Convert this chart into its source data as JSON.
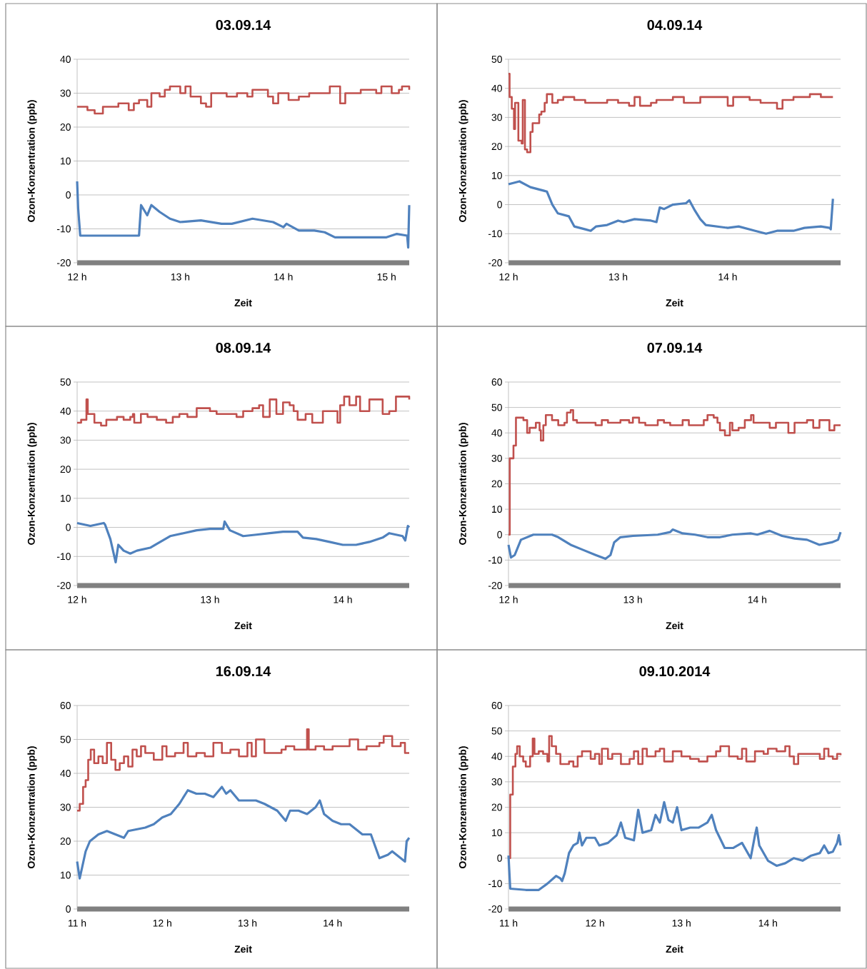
{
  "chart_data": [
    {
      "type": "line",
      "title": "03.09.14",
      "xlabel": "Zeit",
      "ylabel": "Ozon-Konzentration (ppb)",
      "xlim": [
        12,
        15.22
      ],
      "ylim": [
        -20,
        40
      ],
      "grid": "y",
      "xticks": [
        {
          "value": 12,
          "label": "12 h"
        },
        {
          "value": 13,
          "label": "13 h"
        },
        {
          "value": 14,
          "label": "14 h"
        },
        {
          "value": 15,
          "label": "15 h"
        }
      ],
      "yticks": [
        -20,
        -10,
        0,
        10,
        20,
        30,
        40
      ],
      "series": [
        {
          "type": "step",
          "color": "#c0504d",
          "x": [
            12.0,
            12.1,
            12.17,
            12.25,
            12.4,
            12.5,
            12.55,
            12.6,
            12.68,
            12.72,
            12.8,
            12.85,
            12.9,
            13.0,
            13.05,
            13.1,
            13.2,
            13.25,
            13.3,
            13.45,
            13.55,
            13.65,
            13.7,
            13.85,
            13.9,
            13.95,
            14.05,
            14.15,
            14.25,
            14.4,
            14.45,
            14.55,
            14.6,
            14.75,
            14.9,
            14.95,
            15.05,
            15.12,
            15.15,
            15.22
          ],
          "values": [
            26,
            25,
            24,
            26,
            27,
            25,
            27,
            28,
            26,
            30,
            29,
            31,
            32,
            30,
            32,
            29,
            27,
            26,
            30,
            29,
            30,
            29,
            31,
            29,
            27,
            30,
            28,
            29,
            30,
            30,
            32,
            27,
            30,
            31,
            30,
            32,
            30,
            31,
            32,
            31
          ]
        },
        {
          "type": "line",
          "color": "#4f81bd",
          "x": [
            12.0,
            12.01,
            12.03,
            12.6,
            12.62,
            12.68,
            12.72,
            12.8,
            12.9,
            13.0,
            13.2,
            13.4,
            13.5,
            13.7,
            13.9,
            14.0,
            14.03,
            14.15,
            14.3,
            14.4,
            14.5,
            15.0,
            15.1,
            15.2,
            15.21,
            15.22
          ],
          "values": [
            4,
            -4,
            -12,
            -12,
            -3,
            -6,
            -3,
            -5,
            -7,
            -8,
            -7.5,
            -8.5,
            -8.5,
            -7,
            -8,
            -9.5,
            -8.5,
            -10.5,
            -10.5,
            -11,
            -12.5,
            -12.5,
            -11.5,
            -12,
            -15.5,
            -3
          ]
        }
      ]
    },
    {
      "type": "line",
      "title": "04.09.14",
      "xlabel": "Zeit",
      "ylabel": "Ozon-Konzentration (ppb)",
      "xlim": [
        12,
        15.03
      ],
      "ylim": [
        -20,
        50
      ],
      "grid": "y",
      "xticks": [
        {
          "value": 12,
          "label": "12 h"
        },
        {
          "value": 13,
          "label": "13 h"
        },
        {
          "value": 14,
          "label": "14 h"
        }
      ],
      "yticks": [
        -20,
        -10,
        0,
        10,
        20,
        30,
        40,
        50
      ],
      "series": [
        {
          "type": "step",
          "color": "#c0504d",
          "x": [
            12.0,
            12.01,
            12.03,
            12.05,
            12.06,
            12.09,
            12.12,
            12.13,
            12.15,
            12.17,
            12.2,
            12.22,
            12.28,
            12.3,
            12.33,
            12.35,
            12.4,
            12.45,
            12.5,
            12.6,
            12.7,
            12.9,
            13.0,
            13.1,
            13.15,
            13.2,
            13.3,
            13.35,
            13.5,
            13.6,
            13.75,
            13.9,
            14.0,
            14.05,
            14.2,
            14.3,
            14.45,
            14.5,
            14.6,
            14.75,
            14.85,
            14.96
          ],
          "values": [
            45,
            37,
            33,
            26,
            35,
            22,
            21,
            36,
            19,
            18,
            25,
            28,
            31,
            32,
            35,
            38,
            35,
            36,
            37,
            36,
            35,
            36,
            35,
            34,
            37,
            34,
            35,
            36,
            37,
            35,
            37,
            37,
            34,
            37,
            36,
            35,
            33,
            36,
            37,
            38,
            37,
            37
          ]
        },
        {
          "type": "line",
          "color": "#4f81bd",
          "x": [
            12.0,
            12.1,
            12.2,
            12.35,
            12.4,
            12.45,
            12.55,
            12.6,
            12.7,
            12.75,
            12.8,
            12.9,
            13.0,
            13.05,
            13.15,
            13.3,
            13.35,
            13.38,
            13.42,
            13.5,
            13.62,
            13.65,
            13.7,
            13.75,
            13.8,
            14.0,
            14.1,
            14.25,
            14.35,
            14.45,
            14.6,
            14.7,
            14.85,
            14.93,
            14.94,
            14.96
          ],
          "values": [
            7,
            8,
            6,
            4.5,
            0,
            -3,
            -4,
            -7.5,
            -8.5,
            -9,
            -7.5,
            -7,
            -5.5,
            -6,
            -5,
            -5.5,
            -6,
            -1,
            -1.5,
            0,
            0.5,
            1.5,
            -2,
            -5,
            -7,
            -8,
            -7.5,
            -9,
            -10,
            -9,
            -9,
            -8,
            -7.5,
            -8,
            -8.5,
            2
          ]
        }
      ]
    },
    {
      "type": "line",
      "title": "08.09.14",
      "xlabel": "Zeit",
      "ylabel": "Ozon-Konzentration (ppb)",
      "xlim": [
        12,
        14.5
      ],
      "ylim": [
        -20,
        50
      ],
      "grid": "y",
      "xticks": [
        {
          "value": 12,
          "label": "12 h"
        },
        {
          "value": 13,
          "label": "13 h"
        },
        {
          "value": 14,
          "label": "14 h"
        }
      ],
      "yticks": [
        -20,
        -10,
        0,
        10,
        20,
        30,
        40,
        50
      ],
      "series": [
        {
          "type": "step",
          "color": "#c0504d",
          "x": [
            12.0,
            12.03,
            12.07,
            12.08,
            12.13,
            12.18,
            12.22,
            12.3,
            12.35,
            12.4,
            12.42,
            12.43,
            12.48,
            12.53,
            12.6,
            12.67,
            12.72,
            12.77,
            12.83,
            12.9,
            13.0,
            13.05,
            13.15,
            13.2,
            13.25,
            13.32,
            13.37,
            13.4,
            13.45,
            13.5,
            13.55,
            13.6,
            13.63,
            13.66,
            13.72,
            13.77,
            13.85,
            13.96,
            13.98,
            14.01,
            14.05,
            14.1,
            14.13,
            14.2,
            14.3,
            14.35,
            14.4,
            14.5
          ],
          "values": [
            36,
            37,
            44,
            39,
            36,
            35,
            37,
            38,
            37,
            38,
            39,
            36,
            39,
            38,
            37,
            36,
            38,
            39,
            38,
            41,
            40,
            39,
            39,
            38,
            40,
            41,
            42,
            38,
            44,
            39,
            43,
            42,
            40,
            37,
            39,
            36,
            40,
            36,
            42,
            45,
            42,
            45,
            40,
            44,
            39,
            40,
            45,
            44
          ]
        },
        {
          "type": "line",
          "color": "#4f81bd",
          "x": [
            12.0,
            12.1,
            12.2,
            12.21,
            12.25,
            12.29,
            12.31,
            12.35,
            12.4,
            12.45,
            12.55,
            12.7,
            12.8,
            12.9,
            13.0,
            13.1,
            13.11,
            13.15,
            13.25,
            13.35,
            13.45,
            13.55,
            13.66,
            13.7,
            13.8,
            13.9,
            14.0,
            14.1,
            14.2,
            14.3,
            14.35,
            14.45,
            14.47,
            14.49,
            14.5
          ],
          "values": [
            1.5,
            0.5,
            1.5,
            1,
            -4,
            -12,
            -6,
            -8,
            -9,
            -8,
            -7,
            -3,
            -2,
            -1,
            -0.5,
            -0.5,
            2,
            -1,
            -3,
            -2.5,
            -2,
            -1.5,
            -1.5,
            -3.5,
            -4,
            -5,
            -6,
            -6,
            -5,
            -3.5,
            -2,
            -3,
            -4.5,
            0.5,
            0
          ]
        }
      ]
    },
    {
      "type": "line",
      "title": "07.09.14",
      "xlabel": "Zeit",
      "ylabel": "Ozon-Konzentration (ppb)",
      "xlim": [
        12,
        14.67
      ],
      "ylim": [
        -20,
        60
      ],
      "grid": "y",
      "xticks": [
        {
          "value": 12,
          "label": "12 h"
        },
        {
          "value": 13,
          "label": "13 h"
        },
        {
          "value": 14,
          "label": "14 h"
        }
      ],
      "yticks": [
        -20,
        -10,
        0,
        10,
        20,
        30,
        40,
        50,
        60
      ],
      "series": [
        {
          "type": "step",
          "color": "#c0504d",
          "x": [
            12.0,
            12.01,
            12.04,
            12.06,
            12.12,
            12.15,
            12.17,
            12.22,
            12.25,
            12.26,
            12.28,
            12.3,
            12.35,
            12.4,
            12.45,
            12.47,
            12.5,
            12.52,
            12.55,
            12.65,
            12.7,
            12.75,
            12.8,
            12.9,
            12.97,
            13.0,
            13.05,
            13.1,
            13.2,
            13.25,
            13.3,
            13.4,
            13.45,
            13.5,
            13.57,
            13.6,
            13.65,
            13.68,
            13.7,
            13.74,
            13.78,
            13.8,
            13.85,
            13.9,
            13.95,
            13.97,
            14.05,
            14.1,
            14.15,
            14.25,
            14.3,
            14.4,
            14.45,
            14.5,
            14.58,
            14.62,
            14.67
          ],
          "values": [
            0,
            30,
            35,
            46,
            45,
            40,
            42,
            44,
            41,
            37,
            43,
            47,
            45,
            43,
            44,
            48,
            49,
            45,
            44,
            44,
            43,
            45,
            44,
            45,
            44,
            46,
            44,
            43,
            45,
            44,
            43,
            45,
            43,
            43,
            45,
            47,
            46,
            44,
            41,
            39,
            44,
            41,
            42,
            45,
            47,
            44,
            44,
            42,
            44,
            40,
            44,
            45,
            42,
            45,
            41,
            43,
            43
          ]
        },
        {
          "type": "line",
          "color": "#4f81bd",
          "x": [
            12.0,
            12.02,
            12.05,
            12.1,
            12.2,
            12.35,
            12.4,
            12.5,
            12.6,
            12.7,
            12.78,
            12.82,
            12.85,
            12.9,
            13.0,
            13.2,
            13.3,
            13.32,
            13.4,
            13.5,
            13.6,
            13.7,
            13.8,
            13.95,
            14.0,
            14.1,
            14.2,
            14.3,
            14.4,
            14.5,
            14.6,
            14.65,
            14.67
          ],
          "values": [
            -4,
            -9,
            -8,
            -2,
            0,
            0,
            -1,
            -4,
            -6,
            -8,
            -9.5,
            -8,
            -3,
            -1,
            -0.5,
            0,
            1,
            2,
            0.5,
            0,
            -1,
            -1,
            0,
            0.5,
            0,
            1.5,
            -0.5,
            -1.5,
            -2,
            -4,
            -3,
            -2,
            1
          ]
        }
      ]
    },
    {
      "type": "line",
      "title": "16.09.14",
      "xlabel": "Zeit",
      "ylabel": "Ozon-Konzentration (ppb)",
      "xlim": [
        11,
        14.9
      ],
      "ylim": [
        0,
        60
      ],
      "grid": "y",
      "xticks": [
        {
          "value": 11,
          "label": "11 h"
        },
        {
          "value": 12,
          "label": "12 h"
        },
        {
          "value": 13,
          "label": "13 h"
        },
        {
          "value": 14,
          "label": "14 h"
        }
      ],
      "yticks": [
        0,
        10,
        20,
        30,
        40,
        50,
        60
      ],
      "series": [
        {
          "type": "step",
          "color": "#c0504d",
          "x": [
            11.0,
            11.03,
            11.07,
            11.1,
            11.13,
            11.16,
            11.2,
            11.25,
            11.3,
            11.35,
            11.4,
            11.45,
            11.5,
            11.55,
            11.6,
            11.65,
            11.7,
            11.75,
            11.8,
            11.9,
            12.0,
            12.05,
            12.15,
            12.25,
            12.3,
            12.4,
            12.5,
            12.6,
            12.7,
            12.8,
            12.9,
            13.0,
            13.05,
            13.1,
            13.2,
            13.3,
            13.4,
            13.45,
            13.55,
            13.7,
            13.72,
            13.8,
            13.9,
            14.0,
            14.2,
            14.3,
            14.4,
            14.55,
            14.6,
            14.7,
            14.8,
            14.85,
            14.9
          ],
          "values": [
            29,
            31,
            36,
            38,
            44,
            47,
            43,
            45,
            43,
            49,
            44,
            41,
            43,
            45,
            42,
            47,
            45,
            48,
            46,
            44,
            48,
            45,
            46,
            49,
            45,
            46,
            45,
            49,
            46,
            47,
            45,
            49,
            45,
            50,
            46,
            46,
            47,
            48,
            47,
            53,
            47,
            48,
            47,
            48,
            50,
            47,
            48,
            49,
            51,
            48,
            49,
            46,
            46
          ]
        },
        {
          "type": "line",
          "color": "#4f81bd",
          "x": [
            11.0,
            11.03,
            11.1,
            11.15,
            11.25,
            11.35,
            11.45,
            11.55,
            11.6,
            11.8,
            11.9,
            12.0,
            12.1,
            12.2,
            12.3,
            12.4,
            12.5,
            12.6,
            12.7,
            12.75,
            12.8,
            12.9,
            13.0,
            13.1,
            13.2,
            13.35,
            13.45,
            13.5,
            13.6,
            13.7,
            13.8,
            13.85,
            13.9,
            14.0,
            14.1,
            14.2,
            14.35,
            14.45,
            14.55,
            14.65,
            14.7,
            14.8,
            14.85,
            14.87,
            14.9
          ],
          "values": [
            14,
            9,
            17,
            20,
            22,
            23,
            22,
            21,
            23,
            24,
            25,
            27,
            28,
            31,
            35,
            34,
            34,
            33,
            36,
            34,
            35,
            32,
            32,
            32,
            31,
            29,
            26,
            29,
            29,
            28,
            30,
            32,
            28,
            26,
            25,
            25,
            22,
            22,
            15,
            16,
            17,
            15,
            14,
            20,
            21
          ]
        }
      ]
    },
    {
      "type": "line",
      "title": "09.10.2014",
      "xlabel": "Zeit",
      "ylabel": "Ozon-Konzentration (ppb)",
      "xlim": [
        11,
        14.84
      ],
      "ylim": [
        -20,
        60
      ],
      "grid": "y",
      "xticks": [
        {
          "value": 11,
          "label": "11 h"
        },
        {
          "value": 12,
          "label": "12 h"
        },
        {
          "value": 13,
          "label": "13 h"
        },
        {
          "value": 14,
          "label": "14 h"
        }
      ],
      "yticks": [
        -20,
        -10,
        0,
        10,
        20,
        30,
        40,
        50,
        60
      ],
      "series": [
        {
          "type": "step",
          "color": "#c0504d",
          "x": [
            11.0,
            11.02,
            11.05,
            11.08,
            11.1,
            11.13,
            11.17,
            11.2,
            11.25,
            11.28,
            11.3,
            11.35,
            11.4,
            11.45,
            11.47,
            11.5,
            11.55,
            11.6,
            11.7,
            11.75,
            11.8,
            11.85,
            11.95,
            12.0,
            12.05,
            12.08,
            12.15,
            12.2,
            12.3,
            12.4,
            12.45,
            12.5,
            12.55,
            12.6,
            12.7,
            12.75,
            12.8,
            12.9,
            13.0,
            13.1,
            13.2,
            13.3,
            13.4,
            13.45,
            13.55,
            13.65,
            13.7,
            13.75,
            13.85,
            13.95,
            14.0,
            14.1,
            14.2,
            14.25,
            14.3,
            14.35,
            14.5,
            14.6,
            14.65,
            14.7,
            14.75,
            14.8,
            14.84
          ],
          "values": [
            0,
            25,
            36,
            41,
            44,
            40,
            38,
            36,
            40,
            47,
            41,
            42,
            41,
            38,
            48,
            44,
            41,
            37,
            38,
            36,
            40,
            42,
            39,
            41,
            37,
            43,
            39,
            41,
            37,
            39,
            42,
            37,
            43,
            40,
            42,
            43,
            38,
            42,
            40,
            39,
            38,
            40,
            42,
            44,
            40,
            39,
            43,
            38,
            42,
            41,
            43,
            42,
            44,
            40,
            37,
            41,
            41,
            39,
            43,
            40,
            39,
            41,
            40.5
          ]
        },
        {
          "type": "line",
          "color": "#4f81bd",
          "x": [
            11.0,
            11.02,
            11.2,
            11.35,
            11.45,
            11.55,
            11.6,
            11.62,
            11.65,
            11.7,
            11.75,
            11.8,
            11.82,
            11.85,
            11.9,
            12.0,
            12.05,
            12.15,
            12.25,
            12.3,
            12.35,
            12.45,
            12.5,
            12.55,
            12.65,
            12.7,
            12.75,
            12.8,
            12.85,
            12.9,
            12.95,
            13.0,
            13.1,
            13.2,
            13.3,
            13.35,
            13.4,
            13.5,
            13.6,
            13.7,
            13.8,
            13.85,
            13.87,
            13.9,
            14.0,
            14.1,
            14.2,
            14.3,
            14.4,
            14.5,
            14.6,
            14.65,
            14.7,
            14.75,
            14.8,
            14.82,
            14.84
          ],
          "values": [
            1,
            -12,
            -12.5,
            -12.5,
            -10,
            -7,
            -8,
            -9,
            -6,
            2,
            5,
            6,
            10,
            5,
            8,
            8,
            5,
            6,
            9,
            14,
            8,
            7,
            19,
            10,
            11,
            17,
            14,
            22,
            15,
            14,
            20,
            11,
            12,
            12,
            14,
            17,
            11,
            4,
            4,
            6,
            0,
            9,
            12,
            5,
            -1,
            -3,
            -2,
            0,
            -1,
            1,
            2,
            5,
            2,
            2.5,
            6,
            9,
            5
          ]
        }
      ]
    }
  ]
}
